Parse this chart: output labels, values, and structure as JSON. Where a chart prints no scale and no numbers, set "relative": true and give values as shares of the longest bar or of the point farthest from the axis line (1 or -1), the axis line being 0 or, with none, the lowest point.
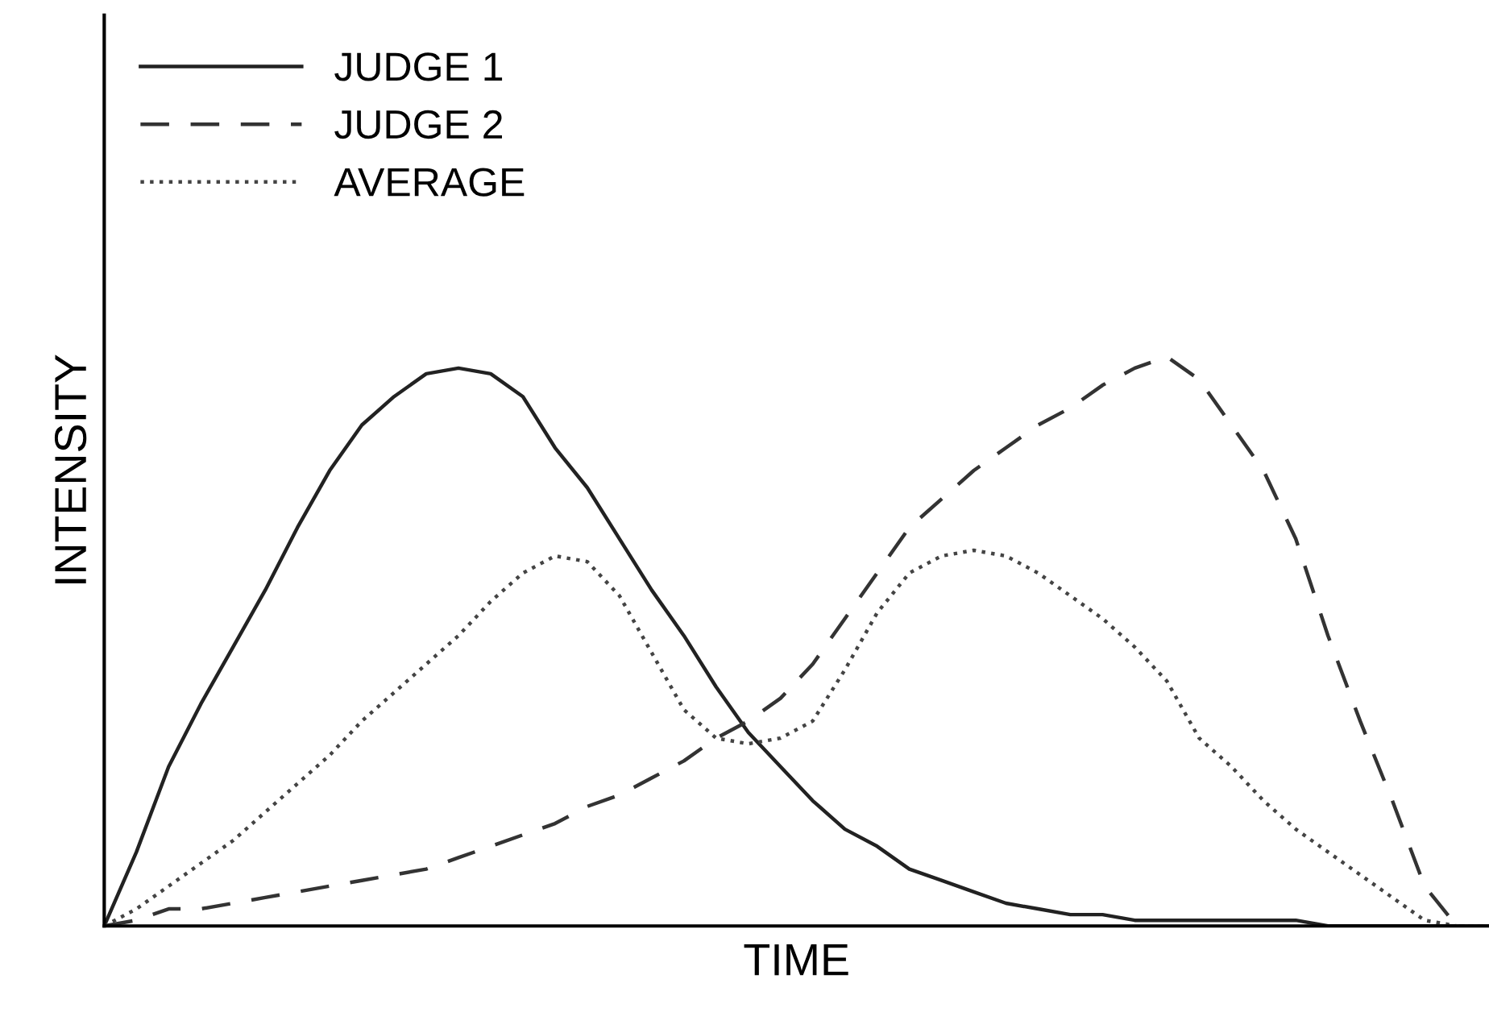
{
  "chart_data": {
    "type": "line",
    "relative": true,
    "xlabel": "TIME",
    "ylabel": "INTENSITY",
    "legend": "top left",
    "tick_labels": false,
    "categories": [
      null,
      null,
      null,
      null,
      null,
      null,
      null,
      null,
      null,
      null,
      null,
      null,
      null,
      null,
      null,
      null,
      null,
      null,
      null,
      null,
      null,
      null,
      null,
      null,
      null,
      null,
      null,
      null,
      null,
      null,
      null,
      null,
      null,
      null,
      null,
      null,
      null,
      null,
      null,
      null,
      null,
      null,
      null,
      null
    ],
    "series": [
      {
        "name": "JUDGE 1",
        "color": "#222222",
        "line_style": "solid",
        "values": [
          0,
          0.13,
          0.28,
          0.39,
          0.49,
          0.59,
          0.7,
          0.8,
          0.88,
          0.93,
          0.97,
          0.98,
          0.97,
          0.93,
          0.84,
          0.77,
          0.68,
          0.59,
          0.51,
          0.42,
          0.34,
          0.28,
          0.22,
          0.17,
          0.14,
          0.1,
          0.08,
          0.06,
          0.04,
          0.03,
          0.02,
          0.02,
          0.01,
          0.01,
          0.01,
          0.01,
          0.01,
          0.01,
          0,
          0,
          0,
          0,
          0,
          0
        ]
      },
      {
        "name": "JUDGE 2",
        "color": "#333333",
        "line_style": "dashed",
        "values": [
          0,
          0.01,
          0.03,
          0.03,
          0.04,
          0.05,
          0.06,
          0.07,
          0.08,
          0.09,
          0.1,
          0.12,
          0.14,
          0.16,
          0.18,
          0.21,
          0.23,
          0.26,
          0.29,
          0.33,
          0.36,
          0.4,
          0.46,
          0.54,
          0.62,
          0.7,
          0.75,
          0.8,
          0.84,
          0.88,
          0.91,
          0.95,
          0.98,
          1,
          0.96,
          0.88,
          0.8,
          0.68,
          0.51,
          0.36,
          0.22,
          0.07,
          0,
          0
        ]
      },
      {
        "name": "AVERAGE",
        "color": "#444444",
        "line_style": "dotted",
        "values": [
          0,
          0.03,
          0.07,
          0.11,
          0.15,
          0.2,
          0.25,
          0.3,
          0.36,
          0.41,
          0.46,
          0.51,
          0.57,
          0.62,
          0.65,
          0.64,
          0.58,
          0.48,
          0.38,
          0.33,
          0.32,
          0.33,
          0.36,
          0.45,
          0.55,
          0.62,
          0.65,
          0.66,
          0.65,
          0.62,
          0.58,
          0.54,
          0.49,
          0.43,
          0.33,
          0.28,
          0.22,
          0.17,
          0.13,
          0.09,
          0.05,
          0.01,
          0,
          0
        ]
      }
    ]
  }
}
